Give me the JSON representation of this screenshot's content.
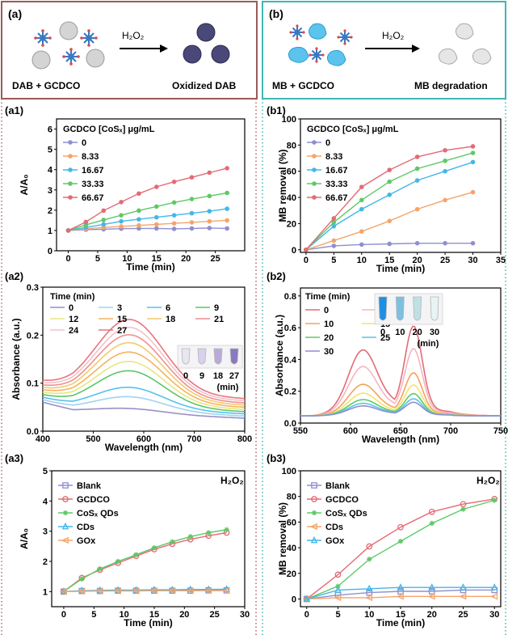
{
  "schemes": [
    {
      "label": "(a)",
      "reactants": "DAB + GCDCO",
      "reagent": "H₂O₂",
      "product": "Oxidized DAB",
      "frame_color": "#9b5a5a"
    },
    {
      "label": "(b)",
      "reactants": "MB + GCDCO",
      "reagent": "H₂O₂",
      "product": "MB degradation",
      "frame_color": "#3fb7b4"
    }
  ],
  "chart_data": [
    {
      "id": "a1",
      "label": "(a1)",
      "type": "line",
      "xlabel": "Time (min)",
      "ylabel": "A/A₀",
      "xlim": [
        -2,
        30
      ],
      "ylim": [
        0,
        6.5
      ],
      "xticks": [
        0,
        5,
        10,
        15,
        20,
        25
      ],
      "yticks": [
        0,
        1,
        2,
        3,
        4,
        5,
        6
      ],
      "legend_title": "GCDCO [CoSₓ] μg/mL",
      "legend_position": "top-left",
      "x": [
        0,
        3,
        6,
        9,
        12,
        15,
        18,
        21,
        24,
        27
      ],
      "series": [
        {
          "name": "0",
          "color": "#8f8fd0",
          "values": [
            1.0,
            1.04,
            1.06,
            1.09,
            1.1,
            1.1,
            1.08,
            1.1,
            1.12,
            1.1
          ]
        },
        {
          "name": "8.33",
          "color": "#f3a56c",
          "values": [
            1.0,
            1.08,
            1.15,
            1.2,
            1.25,
            1.3,
            1.35,
            1.4,
            1.45,
            1.5
          ]
        },
        {
          "name": "16.67",
          "color": "#43b7e8",
          "values": [
            1.0,
            1.15,
            1.3,
            1.45,
            1.55,
            1.65,
            1.75,
            1.85,
            1.95,
            2.07
          ]
        },
        {
          "name": "33.33",
          "color": "#5ec966",
          "values": [
            1.0,
            1.28,
            1.52,
            1.75,
            1.98,
            2.18,
            2.38,
            2.55,
            2.7,
            2.85
          ]
        },
        {
          "name": "66.67",
          "color": "#e36b75",
          "values": [
            1.0,
            1.42,
            1.98,
            2.4,
            2.82,
            3.15,
            3.4,
            3.62,
            3.85,
            4.07
          ]
        }
      ]
    },
    {
      "id": "b1",
      "label": "(b1)",
      "type": "line",
      "xlabel": "Time (min)",
      "ylabel": "MB removal (%)",
      "xlim": [
        -1,
        35
      ],
      "ylim": [
        -2,
        100
      ],
      "xticks": [
        0,
        5,
        10,
        15,
        20,
        25,
        30,
        35
      ],
      "yticks": [
        0,
        20,
        40,
        60,
        80,
        100
      ],
      "legend_title": "GCDCO [CoSₓ] μg/mL",
      "legend_position": "top-left",
      "x": [
        0,
        5,
        10,
        15,
        20,
        25,
        30
      ],
      "series": [
        {
          "name": "0",
          "color": "#8f8fd0",
          "values": [
            0,
            3,
            4,
            4.5,
            5,
            5,
            5
          ]
        },
        {
          "name": "8.33",
          "color": "#f3a56c",
          "values": [
            0,
            7,
            14,
            22,
            31,
            38,
            44
          ]
        },
        {
          "name": "16.67",
          "color": "#43b7e8",
          "values": [
            0,
            18,
            31,
            42,
            53,
            60,
            67
          ]
        },
        {
          "name": "33.33",
          "color": "#5ec966",
          "values": [
            0,
            21,
            38,
            52,
            62,
            68,
            74
          ]
        },
        {
          "name": "66.67",
          "color": "#e36b75",
          "values": [
            0,
            24,
            48,
            61,
            71,
            76,
            79
          ]
        }
      ]
    },
    {
      "id": "a2",
      "label": "(a2)",
      "type": "line",
      "xlabel": "Wavelength (nm)",
      "ylabel": "Absorbance (a.u.)",
      "xlim": [
        400,
        800
      ],
      "ylim": [
        0,
        0.3
      ],
      "xticks": [
        400,
        500,
        600,
        700,
        800
      ],
      "yticks": [
        0.0,
        0.1,
        0.2,
        0.3
      ],
      "legend_title": "Time (min)",
      "legend_position": "top",
      "inset_labels": [
        "0",
        "9",
        "18",
        "27",
        "(min)"
      ],
      "series": [
        {
          "name": "0",
          "color": "#9a8ec8",
          "peak": 0.055
        },
        {
          "name": "3",
          "color": "#9fd3ef",
          "peak": 0.075
        },
        {
          "name": "6",
          "color": "#57c1eb",
          "peak": 0.09
        },
        {
          "name": "9",
          "color": "#5cc66a",
          "peak": 0.12
        },
        {
          "name": "12",
          "color": "#e7e680",
          "peak": 0.135
        },
        {
          "name": "15",
          "color": "#f5b25f",
          "peak": 0.15
        },
        {
          "name": "18",
          "color": "#f3ca6a",
          "peak": 0.165
        },
        {
          "name": "21",
          "color": "#f08f8f",
          "peak": 0.177
        },
        {
          "name": "24",
          "color": "#f4c1c9",
          "peak": 0.188
        },
        {
          "name": "27",
          "color": "#e8747d",
          "peak": 0.2
        }
      ]
    },
    {
      "id": "b2",
      "label": "(b2)",
      "type": "line",
      "xlabel": "Wavelength (nm)",
      "ylabel": "Absorbance (a.u.)",
      "xlim": [
        550,
        750
      ],
      "ylim": [
        0,
        0.85
      ],
      "xticks": [
        550,
        600,
        650,
        700,
        750
      ],
      "yticks": [
        0.0,
        0.2,
        0.4,
        0.6,
        0.8
      ],
      "legend_title": "Time (min)",
      "legend_position": "top-left",
      "inset_labels": [
        "0",
        "10",
        "20",
        "30",
        "(min)"
      ],
      "series": [
        {
          "name": "0",
          "color": "#e36b75",
          "peak": 0.56
        },
        {
          "name": "5",
          "color": "#f4b5c0",
          "peak": 0.43
        },
        {
          "name": "10",
          "color": "#f5a25c",
          "peak": 0.29
        },
        {
          "name": "15",
          "color": "#f4e36c",
          "peak": 0.22
        },
        {
          "name": "20",
          "color": "#5ec966",
          "peak": 0.17
        },
        {
          "name": "25",
          "color": "#5ac4ea",
          "peak": 0.14
        },
        {
          "name": "30",
          "color": "#8f8fd0",
          "peak": 0.12
        }
      ]
    },
    {
      "id": "a3",
      "label": "(a3)",
      "type": "line",
      "xlabel": "Time (min)",
      "ylabel": "A/A₀",
      "xlim": [
        -2,
        30
      ],
      "ylim": [
        0.5,
        5
      ],
      "xticks": [
        0,
        5,
        10,
        15,
        20,
        25,
        30
      ],
      "yticks": [
        1,
        2,
        3,
        4,
        5
      ],
      "annotation": "H₂O₂",
      "legend_position": "top-left",
      "x": [
        0,
        3,
        6,
        9,
        12,
        15,
        18,
        21,
        24,
        27
      ],
      "series": [
        {
          "name": "Blank",
          "color": "#8f8fd0",
          "marker": "square",
          "values": [
            1.0,
            1.02,
            1.02,
            1.03,
            1.03,
            1.03,
            1.03,
            1.03,
            1.04,
            1.04
          ]
        },
        {
          "name": "GCDCO",
          "color": "#e36b75",
          "marker": "circle",
          "values": [
            1.0,
            1.45,
            1.72,
            1.95,
            2.18,
            2.4,
            2.58,
            2.73,
            2.85,
            2.95
          ]
        },
        {
          "name": "CoSₓ QDs",
          "color": "#5ec966",
          "marker": "star",
          "values": [
            1.0,
            1.42,
            1.75,
            2.0,
            2.22,
            2.45,
            2.65,
            2.82,
            2.95,
            3.05
          ]
        },
        {
          "name": "CDs",
          "color": "#43b7e8",
          "marker": "triangle",
          "values": [
            1.0,
            1.03,
            1.04,
            1.05,
            1.05,
            1.06,
            1.06,
            1.07,
            1.07,
            1.08
          ]
        },
        {
          "name": "GOx",
          "color": "#f3a56c",
          "marker": "triangle-left",
          "values": [
            1.0,
            1.01,
            1.02,
            1.02,
            1.02,
            1.03,
            1.03,
            1.03,
            1.03,
            1.03
          ]
        }
      ]
    },
    {
      "id": "b3",
      "label": "(b3)",
      "type": "line",
      "xlabel": "Time (min)",
      "ylabel": "MB removal (%)",
      "xlim": [
        -1,
        31
      ],
      "ylim": [
        -6,
        100
      ],
      "xticks": [
        0,
        5,
        10,
        15,
        20,
        25,
        30
      ],
      "yticks": [
        0,
        20,
        40,
        60,
        80,
        100
      ],
      "annotation": "H₂O₂",
      "legend_position": "top-left",
      "x": [
        0,
        5,
        10,
        15,
        20,
        25,
        30
      ],
      "series": [
        {
          "name": "Blank",
          "color": "#8f8fd0",
          "marker": "square",
          "values": [
            0,
            3,
            5,
            6,
            6,
            7,
            7
          ]
        },
        {
          "name": "GCDCO",
          "color": "#e36b75",
          "marker": "circle",
          "values": [
            0,
            19,
            41,
            56,
            68,
            74,
            78
          ]
        },
        {
          "name": "CoSₓ QDs",
          "color": "#5ec966",
          "marker": "star",
          "values": [
            0,
            10,
            31,
            45,
            59,
            70,
            77
          ]
        },
        {
          "name": "CDs",
          "color": "#f3a56c",
          "marker": "triangle-left",
          "values": [
            0,
            1,
            1,
            2,
            2,
            2,
            2
          ]
        },
        {
          "name": "GOx",
          "color": "#43b7e8",
          "marker": "triangle",
          "values": [
            0,
            7,
            8,
            9,
            9,
            9,
            9
          ]
        }
      ]
    }
  ]
}
